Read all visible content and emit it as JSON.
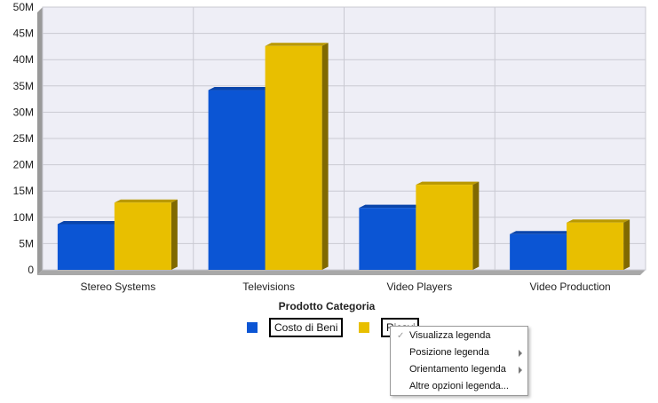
{
  "chart_data": {
    "type": "bar",
    "categories": [
      "Stereo Systems",
      "Televisions",
      "Video Players",
      "Video Production"
    ],
    "series": [
      {
        "name": "Costo di Beni",
        "color": "#0b55d4",
        "values": [
          8.7,
          34.2,
          11.8,
          6.8
        ]
      },
      {
        "name": "Ricavi",
        "color": "#e8bf00",
        "values": [
          12.8,
          42.6,
          16.2,
          9.0
        ]
      }
    ],
    "xlabel": "Prodotto Categoria",
    "ylabel": "",
    "ylim": [
      0,
      50
    ],
    "yticks": [
      "0",
      "5M",
      "10M",
      "15M",
      "20M",
      "25M",
      "30M",
      "35M",
      "40M",
      "45M",
      "50M"
    ],
    "grid": true,
    "legend_position": "bottom"
  },
  "legend": {
    "items": [
      {
        "label": "Costo di Beni",
        "color": "#0b55d4"
      },
      {
        "label": "Ricavi",
        "color": "#e8bf00"
      }
    ]
  },
  "context_menu": {
    "items": [
      {
        "label": "Visualizza legenda",
        "checked": true,
        "submenu": false
      },
      {
        "label": "Posizione legenda",
        "checked": false,
        "submenu": true
      },
      {
        "label": "Orientamento legenda",
        "checked": false,
        "submenu": true
      },
      {
        "label": "Altre opzioni legenda...",
        "checked": false,
        "submenu": false
      }
    ]
  }
}
